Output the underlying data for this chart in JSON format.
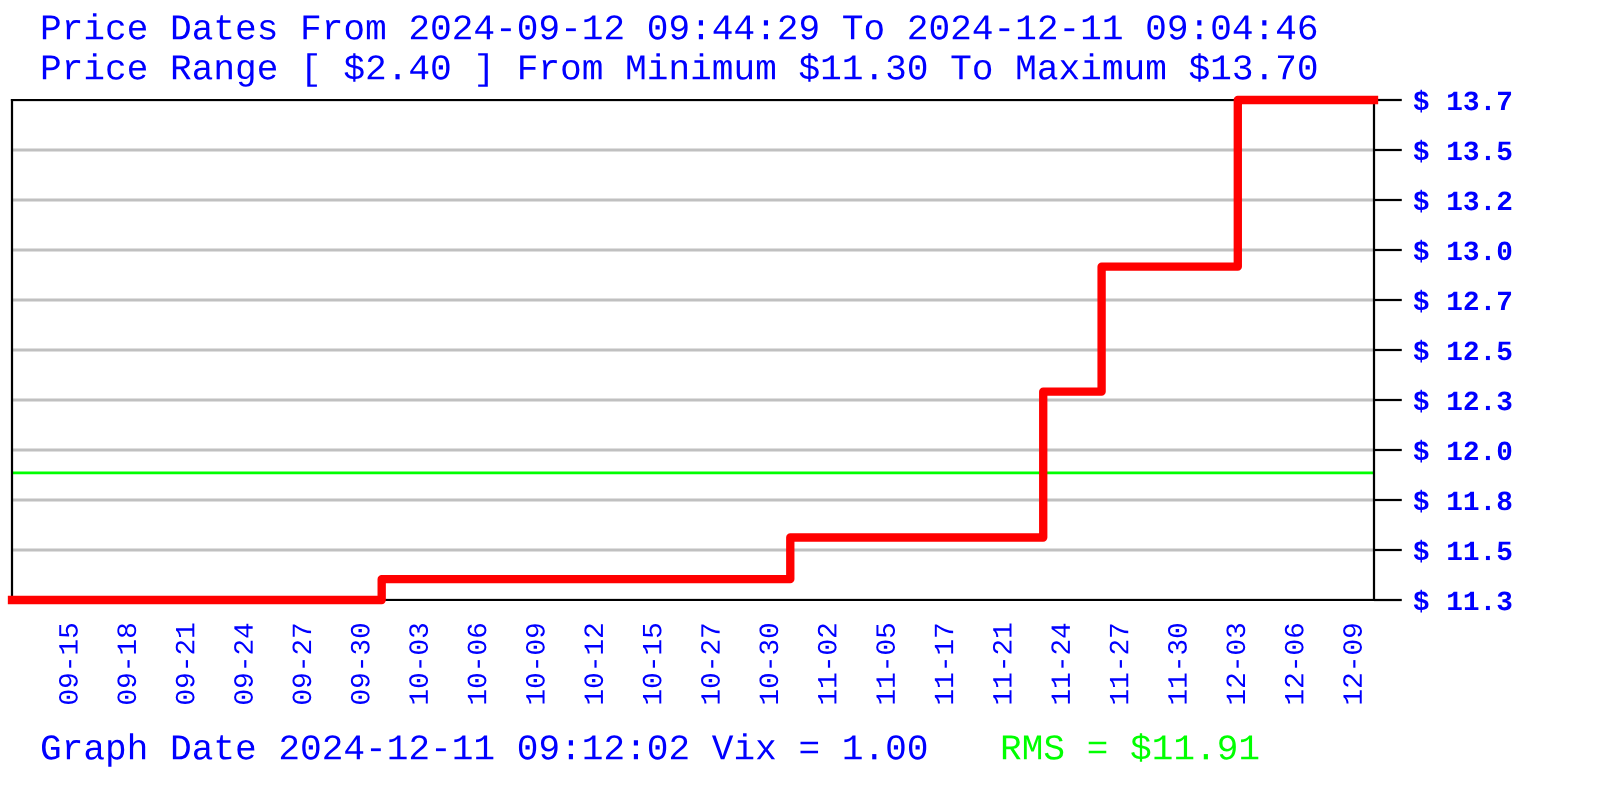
{
  "chart_data": {
    "type": "step",
    "title": "Price Dates From 2024-09-12 09:44:29 To 2024-12-11 09:04:46",
    "subtitle": "Price Range [ $2.40 ] From Minimum $11.30 To Maximum $13.70",
    "categories": [
      null,
      null,
      null,
      "09-15",
      null,
      null,
      "09-18",
      null,
      null,
      "09-21",
      null,
      null,
      "09-24",
      null,
      null,
      "09-27",
      null,
      null,
      "09-30",
      null,
      null,
      "10-03",
      null,
      null,
      "10-06",
      null,
      null,
      "10-09",
      null,
      null,
      "10-12",
      null,
      null,
      "10-15",
      null,
      null,
      "10-27",
      null,
      null,
      "10-30",
      null,
      null,
      "11-02",
      null,
      null,
      "11-05",
      null,
      null,
      "11-17",
      null,
      null,
      "11-21",
      null,
      null,
      "11-24",
      null,
      null,
      "11-27",
      null,
      null,
      "11-30",
      null,
      null,
      "12-03",
      null,
      null,
      "12-06",
      null,
      null,
      "12-09",
      null
    ],
    "series": [
      {
        "color": "#ff0000",
        "values": [
          11.3,
          11.3,
          11.3,
          11.3,
          11.3,
          11.3,
          11.3,
          11.3,
          11.3,
          11.3,
          11.3,
          11.3,
          11.3,
          11.3,
          11.3,
          11.3,
          11.3,
          11.3,
          11.3,
          11.4,
          11.4,
          11.4,
          11.4,
          11.4,
          11.4,
          11.4,
          11.4,
          11.4,
          11.4,
          11.4,
          11.4,
          11.4,
          11.4,
          11.4,
          11.4,
          11.4,
          11.4,
          11.4,
          11.4,
          11.4,
          11.6,
          11.6,
          11.6,
          11.6,
          11.6,
          11.6,
          11.6,
          11.6,
          11.6,
          11.6,
          11.6,
          11.6,
          11.6,
          12.3,
          12.3,
          12.3,
          12.9,
          12.9,
          12.9,
          12.9,
          12.9,
          12.9,
          12.9,
          13.7,
          13.7,
          13.7,
          13.7,
          13.7,
          13.7,
          13.7,
          13.7
        ]
      }
    ],
    "ylim": [
      11.3,
      13.7
    ],
    "yticks": [
      {
        "value": 11.3,
        "label": "$ 11.3"
      },
      {
        "value": 11.54,
        "label": "$ 11.5"
      },
      {
        "value": 11.78,
        "label": "$ 11.8"
      },
      {
        "value": 12.02,
        "label": "$ 12.0"
      },
      {
        "value": 12.26,
        "label": "$ 12.3"
      },
      {
        "value": 12.5,
        "label": "$ 12.5"
      },
      {
        "value": 12.74,
        "label": "$ 12.7"
      },
      {
        "value": 12.98,
        "label": "$ 13.0"
      },
      {
        "value": 13.22,
        "label": "$ 13.2"
      },
      {
        "value": 13.46,
        "label": "$ 13.5"
      },
      {
        "value": 13.7,
        "label": "$ 13.7"
      }
    ],
    "ref_lines": [
      {
        "axis": "y",
        "value": 11.91,
        "label": "RMS = $11.91",
        "color": "#00ff00"
      }
    ],
    "annotations": [
      "Graph Date 2024-12-11 09:12:02 Vix = 1.00"
    ],
    "grid": "y",
    "legend": false,
    "marker": "none",
    "line_style": "solid"
  }
}
